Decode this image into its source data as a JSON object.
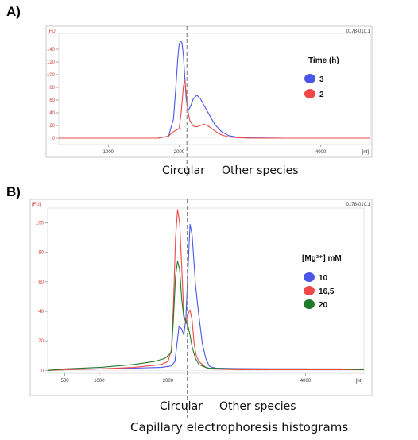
{
  "caption": "Capillary electrophoresis histograms",
  "chart_data": [
    {
      "panel": "A)",
      "type": "line",
      "run_id": "0178-010.1",
      "yunit": "[FU]",
      "xunit": "[nt]",
      "xlim": [
        300,
        4700
      ],
      "ylim": [
        -10,
        165
      ],
      "x_ticks": [
        1000,
        2000,
        4000
      ],
      "x_tick_labels": [
        "1000",
        "2000",
        "4000"
      ],
      "y_ticks": [
        0,
        20,
        40,
        60,
        80,
        100,
        120,
        140
      ],
      "y_tick_labels": [
        "0",
        "20",
        "40",
        "60",
        "80",
        "100",
        "120",
        "140"
      ],
      "divider_x": 2110,
      "region_labels": [
        "Circular",
        "Other species"
      ],
      "legend": {
        "title": "Time (h)",
        "position": "right"
      },
      "series": [
        {
          "name": "3",
          "color": "#4a56e8",
          "x": [
            300,
            1200,
            1700,
            1850,
            1920,
            1950,
            1980,
            2000,
            2020,
            2040,
            2060,
            2080,
            2100,
            2130,
            2160,
            2200,
            2250,
            2300,
            2350,
            2400,
            2450,
            2500,
            2600,
            2700,
            2800,
            3000,
            3500,
            4000,
            4500,
            4700
          ],
          "y": [
            0,
            0,
            0,
            3,
            30,
            75,
            125,
            148,
            153,
            150,
            130,
            95,
            60,
            44,
            50,
            62,
            68,
            62,
            52,
            42,
            32,
            22,
            10,
            4,
            2,
            0.5,
            0,
            0,
            0,
            0
          ]
        },
        {
          "name": "2",
          "color": "#f04848",
          "x": [
            300,
            1200,
            1700,
            1850,
            1900,
            1950,
            2000,
            2030,
            2060,
            2080,
            2100,
            2120,
            2150,
            2200,
            2250,
            2300,
            2350,
            2400,
            2450,
            2500,
            2550,
            2600,
            2700,
            2800,
            3000,
            3500,
            4000,
            4500,
            4700
          ],
          "y": [
            0,
            0,
            0,
            3,
            9,
            12,
            15,
            42,
            82,
            90,
            70,
            45,
            28,
            19,
            18,
            20,
            22,
            20,
            16,
            12,
            8,
            5,
            2,
            1,
            0,
            0,
            0,
            0,
            0
          ]
        }
      ]
    },
    {
      "panel": "B)",
      "type": "line",
      "run_id": "0178-010.1",
      "yunit": "[FU]",
      "xunit": "[nt]",
      "xlim": [
        250,
        4850
      ],
      "ylim": [
        -2,
        110
      ],
      "x_ticks": [
        500,
        1000,
        2000,
        4000
      ],
      "x_tick_labels": [
        "500",
        "1000",
        "2000",
        "4000"
      ],
      "y_ticks": [
        0,
        20,
        40,
        60,
        80,
        100
      ],
      "y_tick_labels": [
        "0",
        "20",
        "40",
        "60",
        "80",
        "100"
      ],
      "divider_x": 2280,
      "region_labels": [
        "Circular",
        "Other species"
      ],
      "legend": {
        "title": "[Mg²⁺] mM",
        "position": "right"
      },
      "series": [
        {
          "name": "10",
          "color": "#4a56e8",
          "x": [
            250,
            500,
            1000,
            1500,
            1900,
            2050,
            2100,
            2130,
            2160,
            2200,
            2230,
            2260,
            2290,
            2320,
            2350,
            2380,
            2400,
            2430,
            2460,
            2500,
            2550,
            2600,
            2650,
            2700,
            3000,
            3500,
            4000,
            4500,
            4850
          ],
          "y": [
            0,
            0.5,
            1,
            1.5,
            2,
            3,
            6,
            18,
            30,
            28,
            24,
            35,
            68,
            99,
            92,
            72,
            58,
            45,
            33,
            18,
            8,
            3,
            2,
            1.5,
            1.2,
            1,
            1,
            0.5,
            0.5
          ]
        },
        {
          "name": "16,5",
          "color": "#f04848",
          "x": [
            250,
            500,
            1000,
            1500,
            1900,
            2000,
            2050,
            2080,
            2110,
            2140,
            2170,
            2200,
            2230,
            2260,
            2290,
            2320,
            2350,
            2380,
            2410,
            2450,
            2500,
            2550,
            2600,
            3000,
            3500,
            4000,
            4500,
            4850
          ],
          "y": [
            0,
            0.5,
            1,
            2,
            4,
            6,
            14,
            45,
            90,
            109,
            100,
            70,
            38,
            32,
            38,
            41,
            34,
            18,
            10,
            6,
            4,
            2,
            1,
            0.5,
            0.5,
            0.5,
            0.5,
            0.5
          ]
        },
        {
          "name": "20",
          "color": "#1f7a2a",
          "x": [
            250,
            500,
            1000,
            1500,
            1800,
            1950,
            2050,
            2080,
            2110,
            2140,
            2170,
            2200,
            2230,
            2260,
            2290,
            2320,
            2350,
            2400,
            2450,
            2500,
            2550,
            2600,
            3000,
            3500,
            4000,
            4500,
            4850
          ],
          "y": [
            0,
            1,
            2,
            4,
            6,
            8,
            12,
            35,
            64,
            74,
            68,
            48,
            36,
            33,
            30,
            24,
            16,
            8,
            4,
            3,
            2,
            1.5,
            1,
            1,
            1,
            1,
            0.5
          ]
        }
      ]
    }
  ]
}
